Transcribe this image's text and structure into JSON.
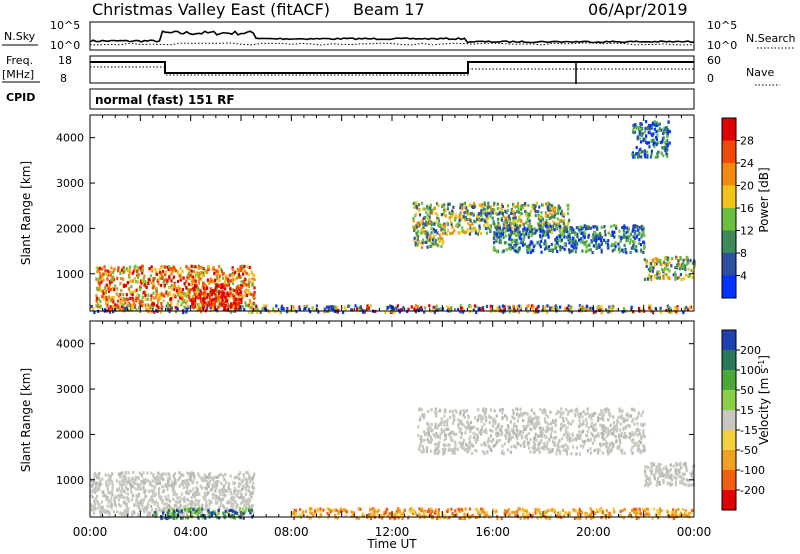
{
  "header": {
    "title": "Christmas Valley East (fitACF)",
    "beam": "Beam 17",
    "date": "06/Apr/2019"
  },
  "noise_panel": {
    "left_label": "N.Sky",
    "left_ticks": [
      "10^5",
      "10^0"
    ],
    "right_label": "N.Search",
    "right_ticks": [
      "10^5",
      "10^0"
    ]
  },
  "freq_panel": {
    "left_label_1": "Freq.",
    "left_label_2": "[MHz]",
    "left_ticks": [
      "18",
      "8"
    ],
    "right_label": "Nave",
    "right_ticks": [
      "60",
      "0"
    ]
  },
  "cpid": {
    "label": "CPID",
    "text": "normal (fast) 151 RF"
  },
  "chart_data": [
    {
      "type": "heatmap",
      "name": "power",
      "xlabel": "",
      "ylabel": "Slant Range [km]",
      "x_range_hours": [
        0,
        24
      ],
      "ylim_km": [
        180,
        4500
      ],
      "yticks": [
        1000,
        2000,
        3000,
        4000
      ],
      "colorbar": {
        "label": "Power [dB]",
        "ticks": [
          "4",
          "8",
          "12",
          "16",
          "20",
          "24",
          "28"
        ],
        "colors": [
          "#0033ff",
          "#2c4fa0",
          "#3a8a5a",
          "#6dbf3e",
          "#f2c318",
          "#f28a10",
          "#f04a08",
          "#e00000"
        ]
      },
      "regions": [
        {
          "t": [
            0.0,
            24.0
          ],
          "r": [
            180,
            330
          ],
          "level": "low-mixed"
        },
        {
          "t": [
            0.2,
            6.5
          ],
          "r": [
            300,
            1200
          ],
          "level": "strong"
        },
        {
          "t": [
            4.0,
            6.0
          ],
          "r": [
            250,
            800
          ],
          "level": "very-strong"
        },
        {
          "t": [
            12.8,
            14.0
          ],
          "r": [
            1600,
            2600
          ],
          "level": "medium"
        },
        {
          "t": [
            14.0,
            19.0
          ],
          "r": [
            1900,
            2600
          ],
          "level": "medium"
        },
        {
          "t": [
            16.0,
            22.0
          ],
          "r": [
            1500,
            2100
          ],
          "level": "weak"
        },
        {
          "t": [
            22.0,
            24.0
          ],
          "r": [
            900,
            1400
          ],
          "level": "medium"
        },
        {
          "t": [
            21.5,
            23.0
          ],
          "r": [
            3600,
            4400
          ],
          "level": "weak"
        }
      ]
    },
    {
      "type": "heatmap",
      "name": "velocity",
      "xlabel": "Time UT",
      "ylabel": "Slant Range [km]",
      "x_range_hours": [
        0,
        24
      ],
      "xticks": [
        "00:00",
        "04:00",
        "08:00",
        "12:00",
        "16:00",
        "20:00",
        "00:00"
      ],
      "ylim_km": [
        180,
        4500
      ],
      "yticks": [
        1000,
        2000,
        3000,
        4000
      ],
      "colorbar": {
        "label": "Velocity [m s^-1]",
        "ticks": [
          "200",
          "100",
          "50",
          "15",
          "-15",
          "-50",
          "-100",
          "-200"
        ],
        "colors": [
          "#2040b0",
          "#2a7a5a",
          "#48a838",
          "#88d048",
          "#c8c8c0",
          "#f2d040",
          "#f0a020",
          "#f06010",
          "#e00000"
        ]
      },
      "regions": [
        {
          "t": [
            0.0,
            6.5
          ],
          "r": [
            250,
            1200
          ],
          "level": "ground-scatter"
        },
        {
          "t": [
            2.5,
            6.5
          ],
          "r": [
            180,
            400
          ],
          "level": "positive"
        },
        {
          "t": [
            8.0,
            24.0
          ],
          "r": [
            180,
            400
          ],
          "level": "negative"
        },
        {
          "t": [
            13.0,
            22.0
          ],
          "r": [
            1600,
            2600
          ],
          "level": "ground-scatter"
        },
        {
          "t": [
            22.0,
            24.0
          ],
          "r": [
            900,
            1400
          ],
          "level": "ground-scatter"
        }
      ]
    }
  ]
}
